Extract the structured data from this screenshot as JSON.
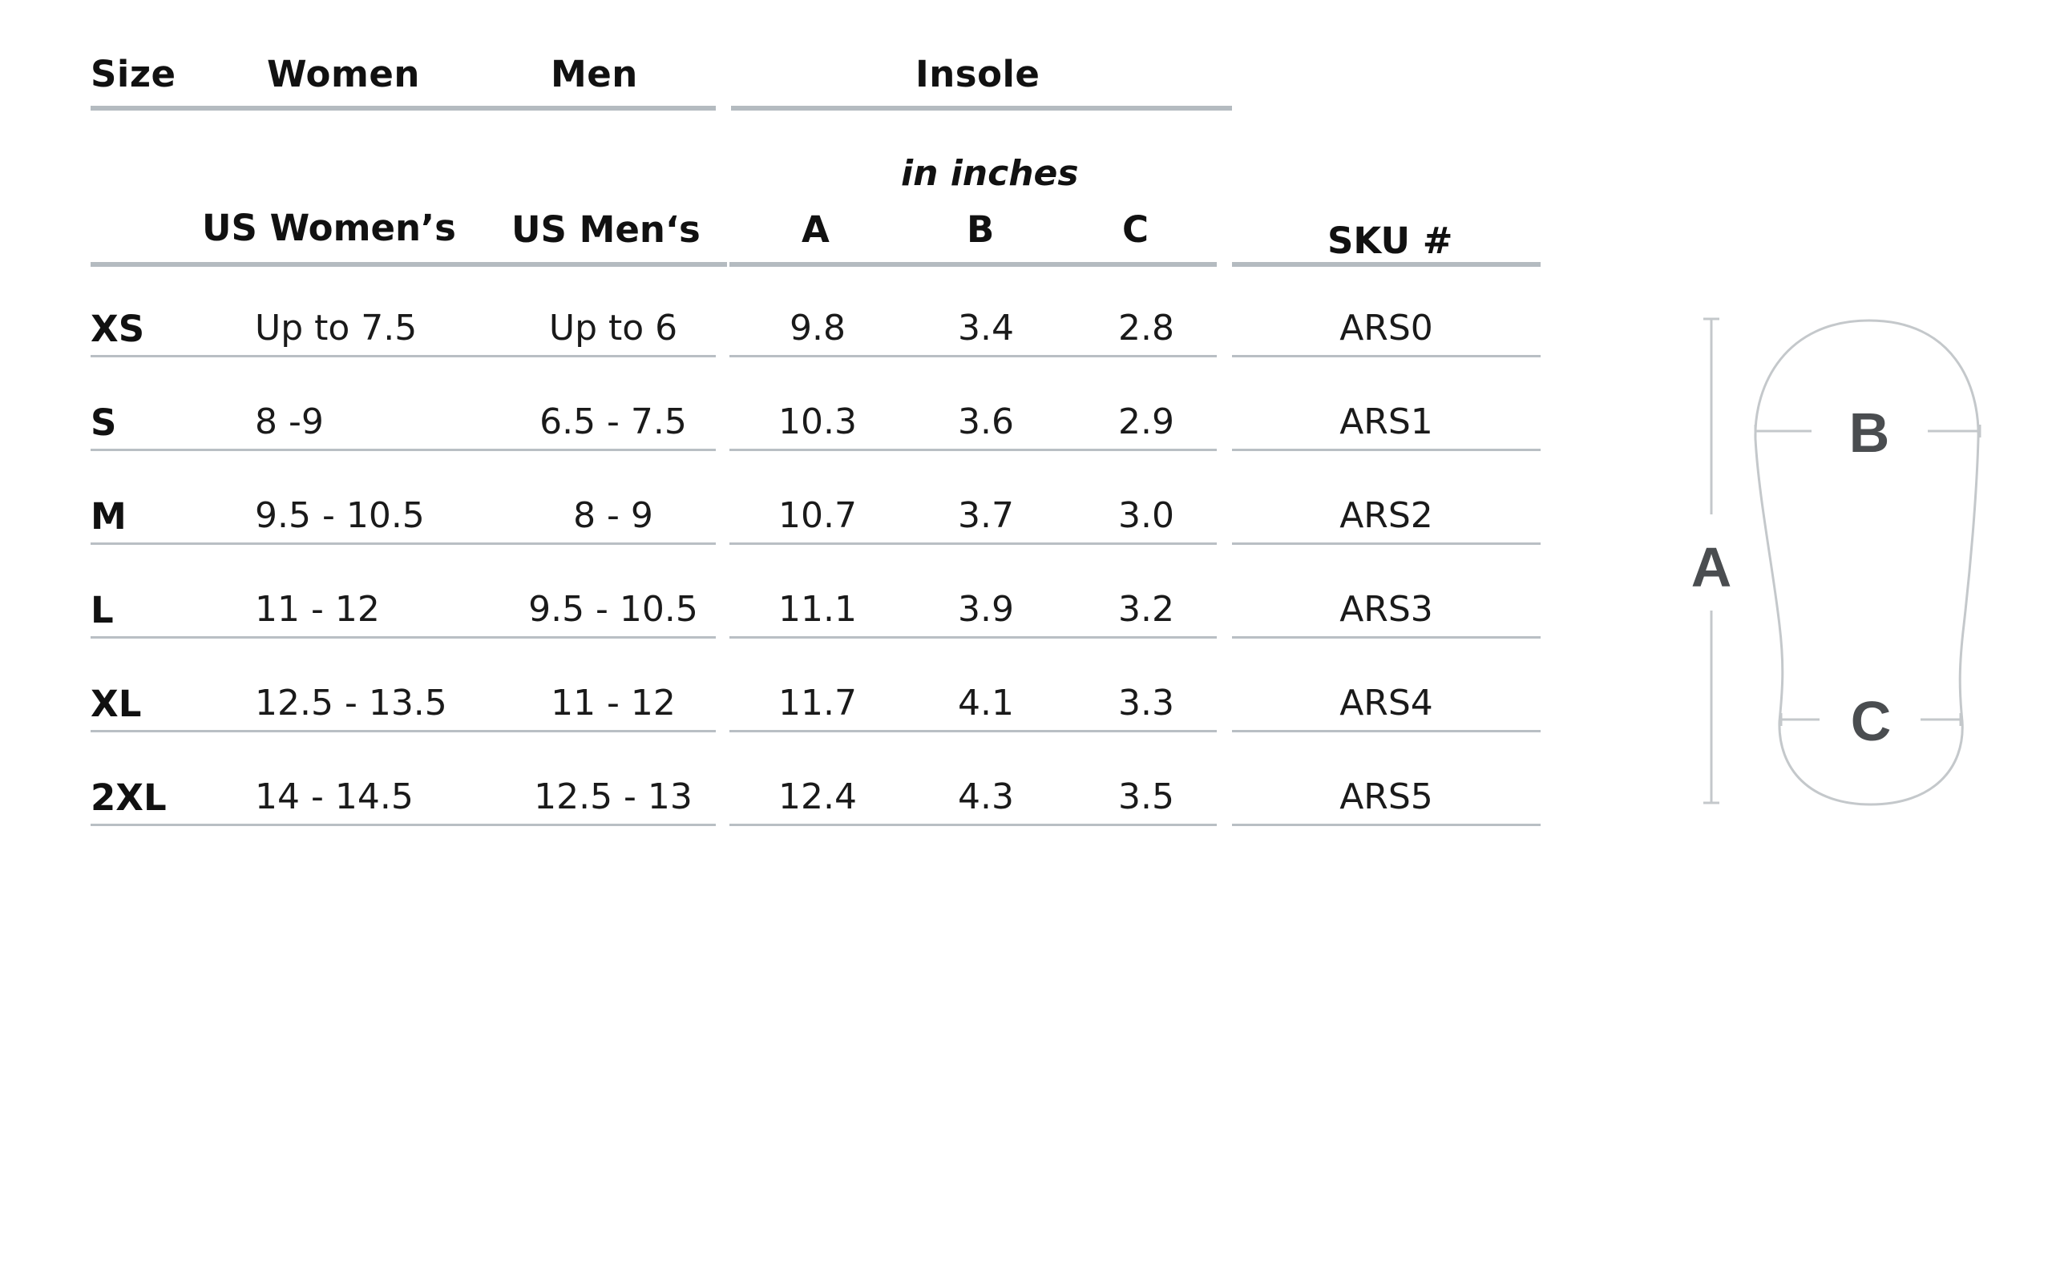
{
  "header": {
    "size": "Size",
    "women": "Women",
    "men": "Men",
    "insole": "Insole"
  },
  "subheader": {
    "unit_note": "in inches",
    "us_womens": "US Women’s",
    "us_mens": "US Men‘s",
    "a": "A",
    "b": "B",
    "c": "C",
    "sku": "SKU #"
  },
  "rows": [
    {
      "size": "XS",
      "women": "Up to 7.5",
      "men": "Up to 6",
      "a": "9.8",
      "b": "3.4",
      "c": "2.8",
      "sku": "ARS0"
    },
    {
      "size": "S",
      "women": "8 -9",
      "men": "6.5 - 7.5",
      "a": "10.3",
      "b": "3.6",
      "c": "2.9",
      "sku": "ARS1"
    },
    {
      "size": "M",
      "women": "9.5 - 10.5",
      "men": "8 - 9",
      "a": "10.7",
      "b": "3.7",
      "c": "3.0",
      "sku": "ARS2"
    },
    {
      "size": "L",
      "women": "11 - 12",
      "men": "9.5 - 10.5",
      "a": "11.1",
      "b": "3.9",
      "c": "3.2",
      "sku": "ARS3"
    },
    {
      "size": "XL",
      "women": "12.5 - 13.5",
      "men": "11 - 12",
      "a": "11.7",
      "b": "4.1",
      "c": "3.3",
      "sku": "ARS4"
    },
    {
      "size": "2XL",
      "women": "14 - 14.5",
      "men": "12.5 - 13",
      "a": "12.4",
      "b": "4.3",
      "c": "3.5",
      "sku": "ARS5"
    }
  ],
  "diagram": {
    "label_a": "A",
    "label_b": "B",
    "label_c": "C"
  },
  "colors": {
    "rule": "#b4bbc0",
    "text": "#111111",
    "diagram_line": "#c4c8cb",
    "diagram_label": "#4a4d50"
  }
}
